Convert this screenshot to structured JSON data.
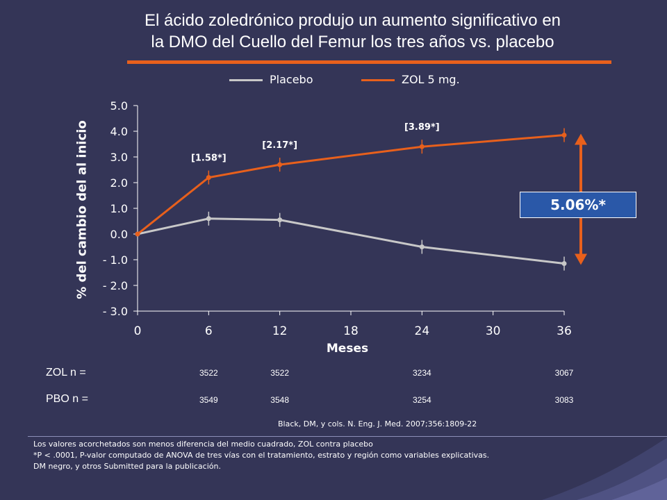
{
  "title_lines": [
    "El ácido zoledrónico produjo un aumento significativo en",
    "la DMO del Cuello del Femur los tres años vs. placebo"
  ],
  "colors": {
    "zol": "#e8601c",
    "placebo": "#c8c8c8",
    "axis": "#ffffff",
    "arrow": "#e8601c",
    "box": "#2a58a8",
    "background": "#343557"
  },
  "legend": [
    {
      "label": "Placebo",
      "color": "#c8c8c8"
    },
    {
      "label": "ZOL 5 mg.",
      "color": "#e8601c"
    }
  ],
  "chart_data": {
    "type": "line",
    "xlabel": "Meses",
    "ylabel": "% del cambio del al inicio",
    "xlim": [
      0,
      36
    ],
    "ylim": [
      -3,
      5
    ],
    "x_ticks": [
      "0",
      "6",
      "12",
      "18",
      "24",
      "30",
      "36"
    ],
    "y_ticks": [
      "5.0",
      "4.0",
      "3.0",
      "2.0",
      "1.0",
      "0.0",
      "- 1.0",
      "- 2.0",
      "- 3.0"
    ],
    "grid": false,
    "legend_position": "top",
    "series": [
      {
        "name": "Placebo",
        "x": [
          0,
          6,
          12,
          24,
          36
        ],
        "values": [
          0.0,
          0.6,
          0.55,
          -0.5,
          -1.15
        ]
      },
      {
        "name": "ZOL 5 mg.",
        "x": [
          0,
          6,
          12,
          24,
          36
        ],
        "values": [
          0.0,
          2.2,
          2.7,
          3.4,
          3.85
        ]
      }
    ],
    "annotations": [
      {
        "text": "[1.58*]",
        "x": 6
      },
      {
        "text": "[2.17*]",
        "x": 12
      },
      {
        "text": "[3.89*]",
        "x": 24
      }
    ],
    "difference_label": "5.06%*"
  },
  "n_table": {
    "rows": [
      {
        "label": "ZOL n =",
        "values": [
          "3522",
          "3522",
          "3234",
          "3067"
        ]
      },
      {
        "label": "PBO n =",
        "values": [
          "3549",
          "3548",
          "3254",
          "3083"
        ]
      }
    ],
    "months": [
      6,
      12,
      24,
      36
    ]
  },
  "source": "Black, DM, y cols.  N. Eng. J. Med. 2007;356:1809-22",
  "footnotes": [
    "Los valores acorchetados son menos diferencia del medio cuadrado, ZOL contra placebo",
    "*P < .0001, P-valor computado de ANOVA de tres vías con el tratamiento, estrato y región como variables explicativas.",
    "DM negro, y otros Submitted para la publicación."
  ]
}
